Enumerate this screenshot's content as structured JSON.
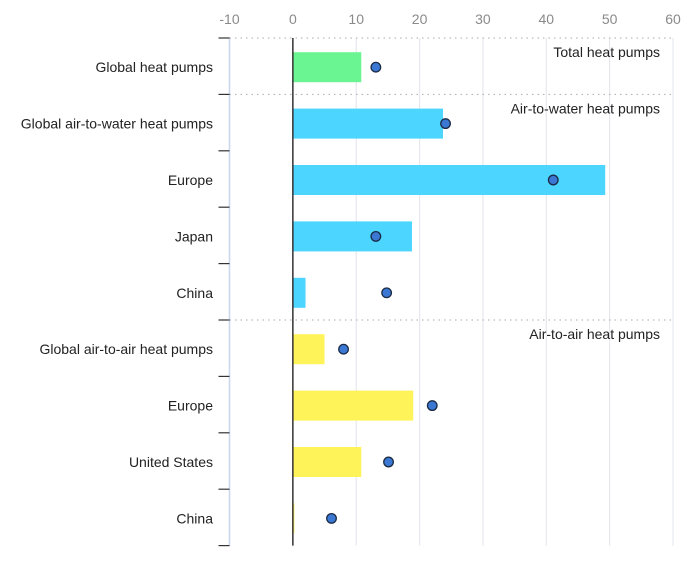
{
  "chart_data": {
    "type": "bar",
    "orientation": "horizontal",
    "xlim": [
      -10,
      60
    ],
    "x_ticks": [
      "-10",
      "0",
      "10",
      "20",
      "30",
      "40",
      "50",
      "60"
    ],
    "grid": true,
    "categories": [
      "Global heat pumps",
      "Global air-to-water heat pumps",
      "Europe",
      "Japan",
      "China",
      "Global air-to-air heat pumps",
      "Europe",
      "United States",
      "China"
    ],
    "groups": [
      {
        "label": "Total heat pumps",
        "start": 0
      },
      {
        "label": "Air-to-water heat pumps",
        "start": 1
      },
      {
        "label": "Air-to-air heat pumps",
        "start": 5
      }
    ],
    "bar_colors": [
      "#6af592",
      "#4bd5ff",
      "#4bd5ff",
      "#4bd5ff",
      "#4bd5ff",
      "#fff35a",
      "#fff35a",
      "#fff35a",
      "#fff35a"
    ],
    "series": [
      {
        "type": "bar",
        "values": [
          10.8,
          23.7,
          49.3,
          18.8,
          2.0,
          5.0,
          19.0,
          10.8,
          0.2
        ]
      },
      {
        "type": "scatter",
        "color": "#3a78d4",
        "values": [
          13.1,
          24.1,
          41.1,
          13.1,
          14.8,
          8.0,
          22.0,
          15.1,
          6.1
        ]
      }
    ]
  }
}
